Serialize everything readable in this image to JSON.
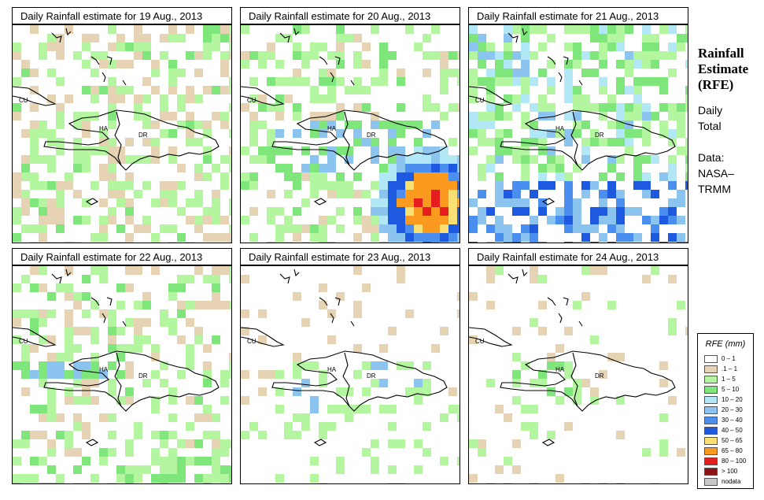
{
  "panels": [
    {
      "title": "Daily Rainfall estimate for  19 Aug., 2013",
      "seed": 19,
      "profile": "light"
    },
    {
      "title": "Daily Rainfall estimate for  20 Aug., 2013",
      "seed": 20,
      "profile": "storm"
    },
    {
      "title": "Daily Rainfall estimate for  21 Aug., 2013",
      "seed": 21,
      "profile": "wide"
    },
    {
      "title": "Daily Rainfall estimate for  22 Aug., 2013",
      "seed": 22,
      "profile": "west"
    },
    {
      "title": "Daily Rainfall estimate for  23 Aug., 2013",
      "seed": 23,
      "profile": "sparse"
    },
    {
      "title": "Daily Rainfall estimate for  24 Aug., 2013",
      "seed": 24,
      "profile": "veryspar"
    }
  ],
  "map_labels": {
    "cuba": "CU",
    "haiti": "HA",
    "dominican_republic": "DR"
  },
  "side": {
    "title_lines": [
      "Rainfall",
      "Estimate",
      "(RFE)"
    ],
    "daily_lines": [
      "Daily",
      "Total"
    ],
    "data_lines": [
      "Data:",
      "NASA–",
      "TRMM"
    ]
  },
  "legend": {
    "title": "RFE (mm)",
    "items": [
      {
        "label": "0 – 1",
        "color": "#ffffff"
      },
      {
        "label": ".1 – 1",
        "color": "#e6d3b3"
      },
      {
        "label": "1 – 5",
        "color": "#b4f5a0"
      },
      {
        "label": "5 – 10",
        "color": "#7ee67a"
      },
      {
        "label": "10 – 20",
        "color": "#b2e8f5"
      },
      {
        "label": "20 – 30",
        "color": "#8cc4f0"
      },
      {
        "label": "30 – 40",
        "color": "#4a8ef0"
      },
      {
        "label": "40 – 50",
        "color": "#1e5ae0"
      },
      {
        "label": "50 – 65",
        "color": "#fae074"
      },
      {
        "label": "65 – 80",
        "color": "#fa9a1e"
      },
      {
        "label": "80 – 100",
        "color": "#e61e1e"
      },
      {
        "label": "> 100",
        "color": "#8c1414"
      },
      {
        "label": "nodata",
        "color": "#c8c8c8"
      }
    ]
  }
}
